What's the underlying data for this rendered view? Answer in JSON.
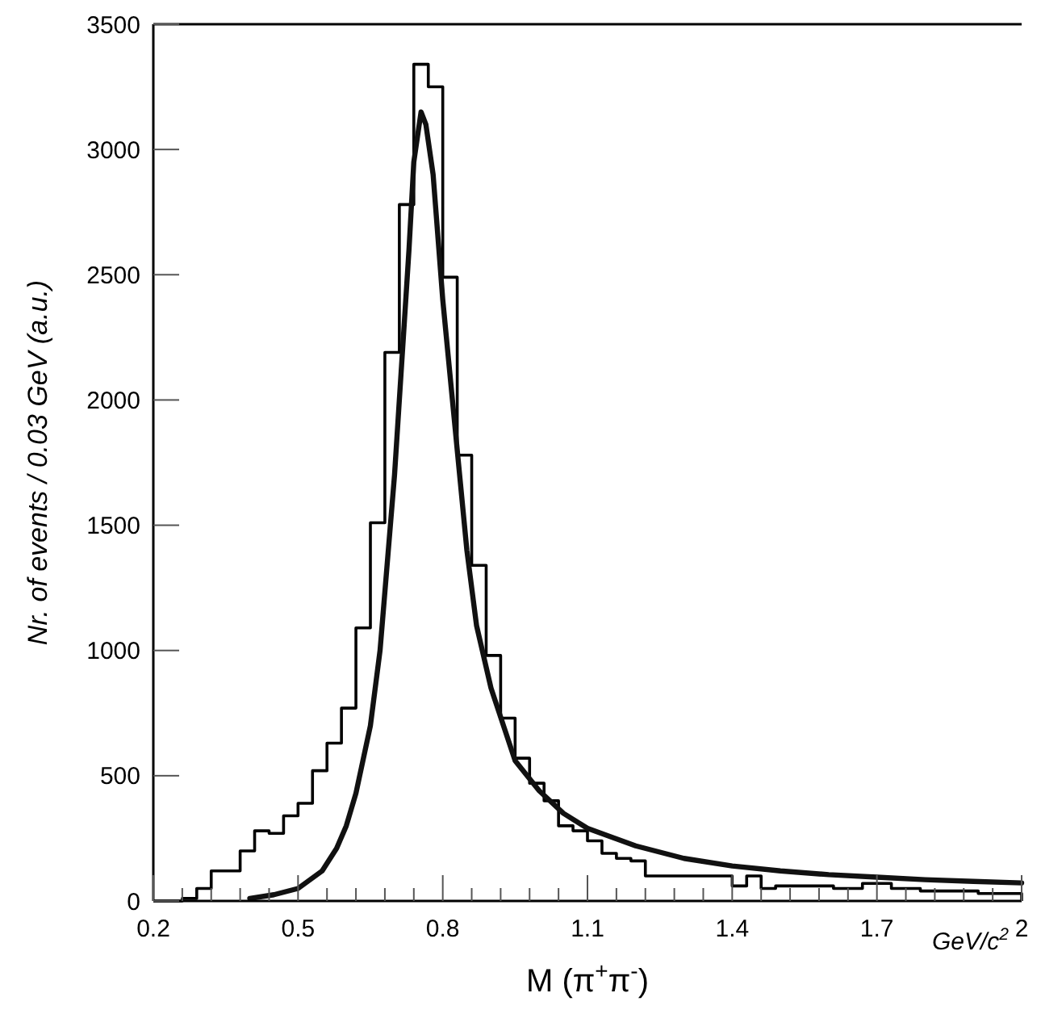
{
  "chart_data": {
    "type": "histogram",
    "xlabel": "M (π$^{+}$π$^{-}$)",
    "ylabel": "Nr. of events / 0.03 GeV (a.u.)",
    "annotations": [
      "GeV/c$^{2}$"
    ],
    "xlim": [
      0.2,
      2.0
    ],
    "xticks": [
      0.2,
      {
        "value": 0.26,
        "label": null
      },
      {
        "value": 0.32,
        "label": null
      },
      {
        "value": 0.38,
        "label": null
      },
      {
        "value": 0.44,
        "label": null
      },
      0.5,
      {
        "value": 0.56,
        "label": null
      },
      {
        "value": 0.62,
        "label": null
      },
      {
        "value": 0.68,
        "label": null
      },
      {
        "value": 0.74,
        "label": null
      },
      0.8,
      {
        "value": 0.86,
        "label": null
      },
      {
        "value": 0.92,
        "label": null
      },
      {
        "value": 0.98,
        "label": null
      },
      {
        "value": 1.04,
        "label": null
      },
      1.1,
      {
        "value": 1.16,
        "label": null
      },
      {
        "value": 1.22,
        "label": null
      },
      {
        "value": 1.28,
        "label": null
      },
      {
        "value": 1.34,
        "label": null
      },
      1.4,
      {
        "value": 1.46,
        "label": null
      },
      {
        "value": 1.52,
        "label": null
      },
      {
        "value": 1.58,
        "label": null
      },
      {
        "value": 1.64,
        "label": null
      },
      1.7,
      {
        "value": 1.76,
        "label": null
      },
      {
        "value": 1.82,
        "label": null
      },
      {
        "value": 1.88,
        "label": null
      },
      {
        "value": 1.94,
        "label": null
      },
      {
        "value": 2.0,
        "label": "2"
      }
    ],
    "ylim": [
      0,
      3500
    ],
    "yticks": [
      0,
      500,
      1000,
      1500,
      2000,
      2500,
      3000,
      3500
    ],
    "color": "#000000",
    "bins": [
      0.2,
      0.23,
      0.26,
      0.29,
      0.32,
      0.35,
      0.38,
      0.41,
      0.44,
      0.47,
      0.5,
      0.53,
      0.56,
      0.59,
      0.62,
      0.65,
      0.68,
      0.71,
      0.74,
      0.77,
      0.8,
      0.83,
      0.86,
      0.89,
      0.92,
      0.95,
      0.98,
      1.01,
      1.04,
      1.07,
      1.1,
      1.13,
      1.16,
      1.19,
      1.22,
      1.25,
      1.28,
      1.31,
      1.34,
      1.37,
      1.4,
      1.43,
      1.46,
      1.49,
      1.52,
      1.55,
      1.58,
      1.61,
      1.64,
      1.67,
      1.7,
      1.73,
      1.76,
      1.79,
      1.82,
      1.85,
      1.88,
      1.91,
      1.94,
      1.97,
      2.0
    ],
    "values": [
      0,
      0,
      10,
      50,
      120,
      120,
      200,
      280,
      270,
      340,
      390,
      520,
      630,
      770,
      1090,
      1510,
      2190,
      2780,
      3340,
      3250,
      2490,
      1780,
      1340,
      980,
      730,
      570,
      470,
      400,
      300,
      280,
      240,
      190,
      170,
      160,
      100,
      100,
      100,
      100,
      100,
      100,
      60,
      100,
      50,
      60,
      60,
      60,
      60,
      50,
      50,
      70,
      70,
      50,
      50,
      40,
      40,
      40,
      40,
      30,
      30,
      30
    ],
    "series": [
      {
        "type": "line",
        "color": "#111111",
        "x": [
          0.4,
          0.45,
          0.5,
          0.55,
          0.58,
          0.6,
          0.62,
          0.65,
          0.67,
          0.7,
          0.72,
          0.73,
          0.74,
          0.755,
          0.765,
          0.78,
          0.8,
          0.82,
          0.85,
          0.87,
          0.9,
          0.95,
          1.0,
          1.05,
          1.1,
          1.2,
          1.3,
          1.4,
          1.5,
          1.6,
          1.7,
          1.8,
          1.9,
          2.0
        ],
        "values": [
          10,
          25,
          50,
          120,
          210,
          300,
          430,
          700,
          1000,
          1700,
          2300,
          2600,
          2950,
          3150,
          3100,
          2900,
          2400,
          2000,
          1400,
          1100,
          850,
          560,
          440,
          350,
          290,
          220,
          170,
          140,
          120,
          105,
          95,
          85,
          78,
          72
        ]
      }
    ]
  }
}
